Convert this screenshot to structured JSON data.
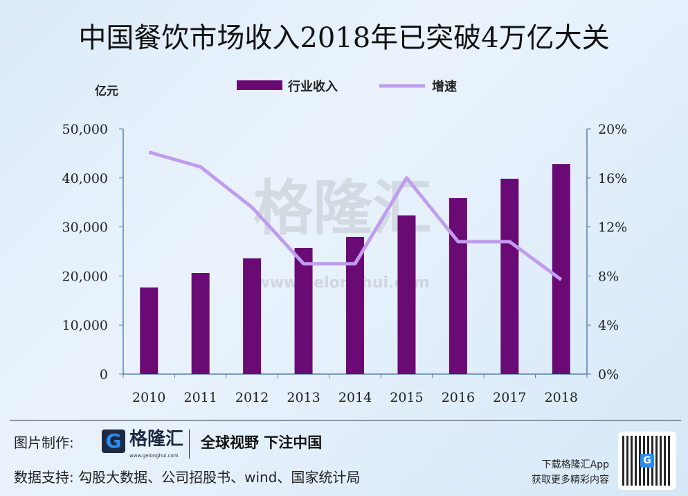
{
  "title": "中国餐饮市场收入2018年已突破4万亿大关",
  "watermark": {
    "text": "格隆汇",
    "url": "www.gelonghui.com"
  },
  "chart_data": {
    "type": "bar+line",
    "categories": [
      "2010",
      "2011",
      "2012",
      "2013",
      "2014",
      "2015",
      "2016",
      "2017",
      "2018"
    ],
    "series": [
      {
        "name": "行业收入",
        "type": "bar",
        "axis": "left",
        "color": "#6a0a74",
        "values": [
          17650,
          20620,
          23590,
          25710,
          27970,
          32340,
          35880,
          39830,
          42800
        ]
      },
      {
        "name": "增速",
        "type": "line",
        "axis": "right",
        "color": "#c09cf0",
        "values": [
          18.1,
          16.9,
          13.6,
          9.0,
          9.0,
          16.0,
          10.8,
          10.8,
          7.7
        ]
      }
    ],
    "ylabel": "亿元",
    "ylim": [
      0,
      50000
    ],
    "yticks": [
      "0",
      "10,000",
      "20,000",
      "30,000",
      "40,000",
      "50,000"
    ],
    "y2lim": [
      0,
      20
    ],
    "y2ticks": [
      "0%",
      "4%",
      "8%",
      "12%",
      "16%",
      "20%"
    ],
    "legend": "top",
    "grid": false
  },
  "footer": {
    "credit_label": "图片制作:",
    "logo_letter": "G",
    "logo_text": "格隆汇",
    "logo_url": "www.gelonghui.com",
    "slogan": "全球视野 下注中国",
    "source": "数据支持: 勾股大数据、公司招股书、wind、国家统计局",
    "app_line1": "下载格隆汇App",
    "app_line2": "获取更多精彩内容"
  }
}
